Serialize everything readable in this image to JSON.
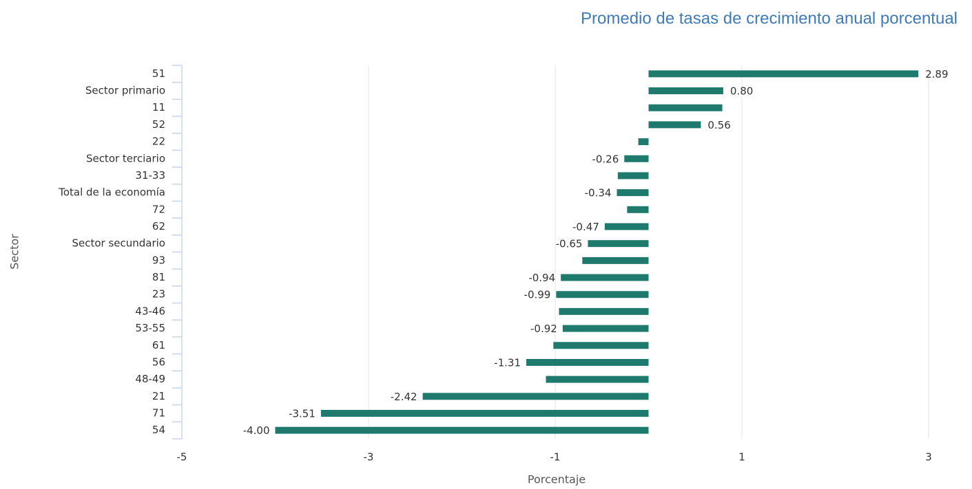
{
  "chart_data": {
    "type": "hbar",
    "title": "Promedio de tasas de crecimiento anual porcentual",
    "x_label": "Porcentaje",
    "y_label": "Sector",
    "categories": [
      "51",
      "Sector primario",
      "11",
      "52",
      "22",
      "Sector terciario",
      "31-33",
      "Total de la economía",
      "72",
      "62",
      "Sector secundario",
      "93",
      "81",
      "23",
      "43-46",
      "53-55",
      "61",
      "56",
      "48-49",
      "21",
      "71",
      "54"
    ],
    "values": [
      2.89,
      0.8,
      0.79,
      0.56,
      -0.11,
      -0.26,
      -0.33,
      -0.34,
      -0.23,
      -0.47,
      -0.65,
      -0.71,
      -0.94,
      -0.99,
      -0.96,
      -0.92,
      -1.02,
      -1.31,
      -1.1,
      -2.42,
      -3.51,
      -4.0
    ],
    "value_labels": [
      "2.89",
      "0.80",
      null,
      "0.56",
      null,
      "-0.26",
      null,
      "-0.34",
      null,
      "-0.47",
      "-0.65",
      null,
      "-0.94",
      "-0.99",
      null,
      "-0.92",
      null,
      "-1.31",
      null,
      "-2.42",
      "-3.51",
      "-4.00"
    ],
    "color": "#1f7a6e",
    "xlim": [
      -5,
      3
    ],
    "xticks": [
      -5,
      -3,
      -1,
      1,
      3
    ],
    "grid": true
  }
}
